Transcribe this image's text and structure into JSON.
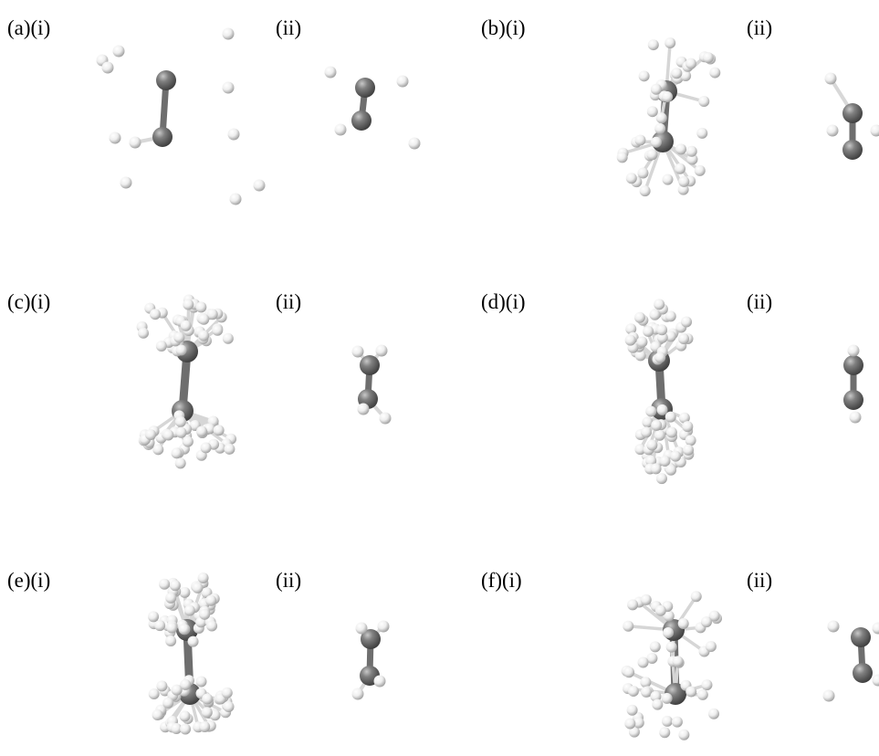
{
  "panels": [
    {
      "label": "(a)(i)"
    },
    {
      "label": "(ii)"
    },
    {
      "label": "(b)(i)"
    },
    {
      "label": "(ii)"
    },
    {
      "label": "(c)(i)"
    },
    {
      "label": "(ii)"
    },
    {
      "label": "(d)(i)"
    },
    {
      "label": "(ii)"
    },
    {
      "label": "(e)(i)"
    },
    {
      "label": "(ii)"
    },
    {
      "label": "(f)(i)"
    },
    {
      "label": "(ii)"
    }
  ]
}
